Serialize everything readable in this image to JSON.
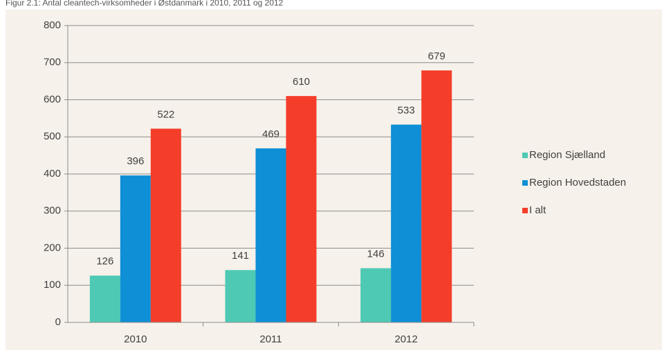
{
  "chart_data": {
    "type": "bar",
    "title": "Figur 2.1: Antal cleantech-virksomheder i Østdanmark i 2010, 2011 og 2012",
    "categories": [
      "2010",
      "2011",
      "2012"
    ],
    "series": [
      {
        "name": "Region Sjælland",
        "color": "#4ec9b4",
        "values": [
          126,
          141,
          146
        ]
      },
      {
        "name": "Region Hovedstaden",
        "color": "#0e8fd6",
        "values": [
          396,
          469,
          533
        ]
      },
      {
        "name": "I alt",
        "color": "#f43e2a",
        "values": [
          522,
          610,
          679
        ]
      }
    ],
    "ylim": [
      0,
      800
    ],
    "yticks": [
      0,
      100,
      200,
      300,
      400,
      500,
      600,
      700,
      800
    ],
    "grid": true,
    "legend": "right"
  }
}
